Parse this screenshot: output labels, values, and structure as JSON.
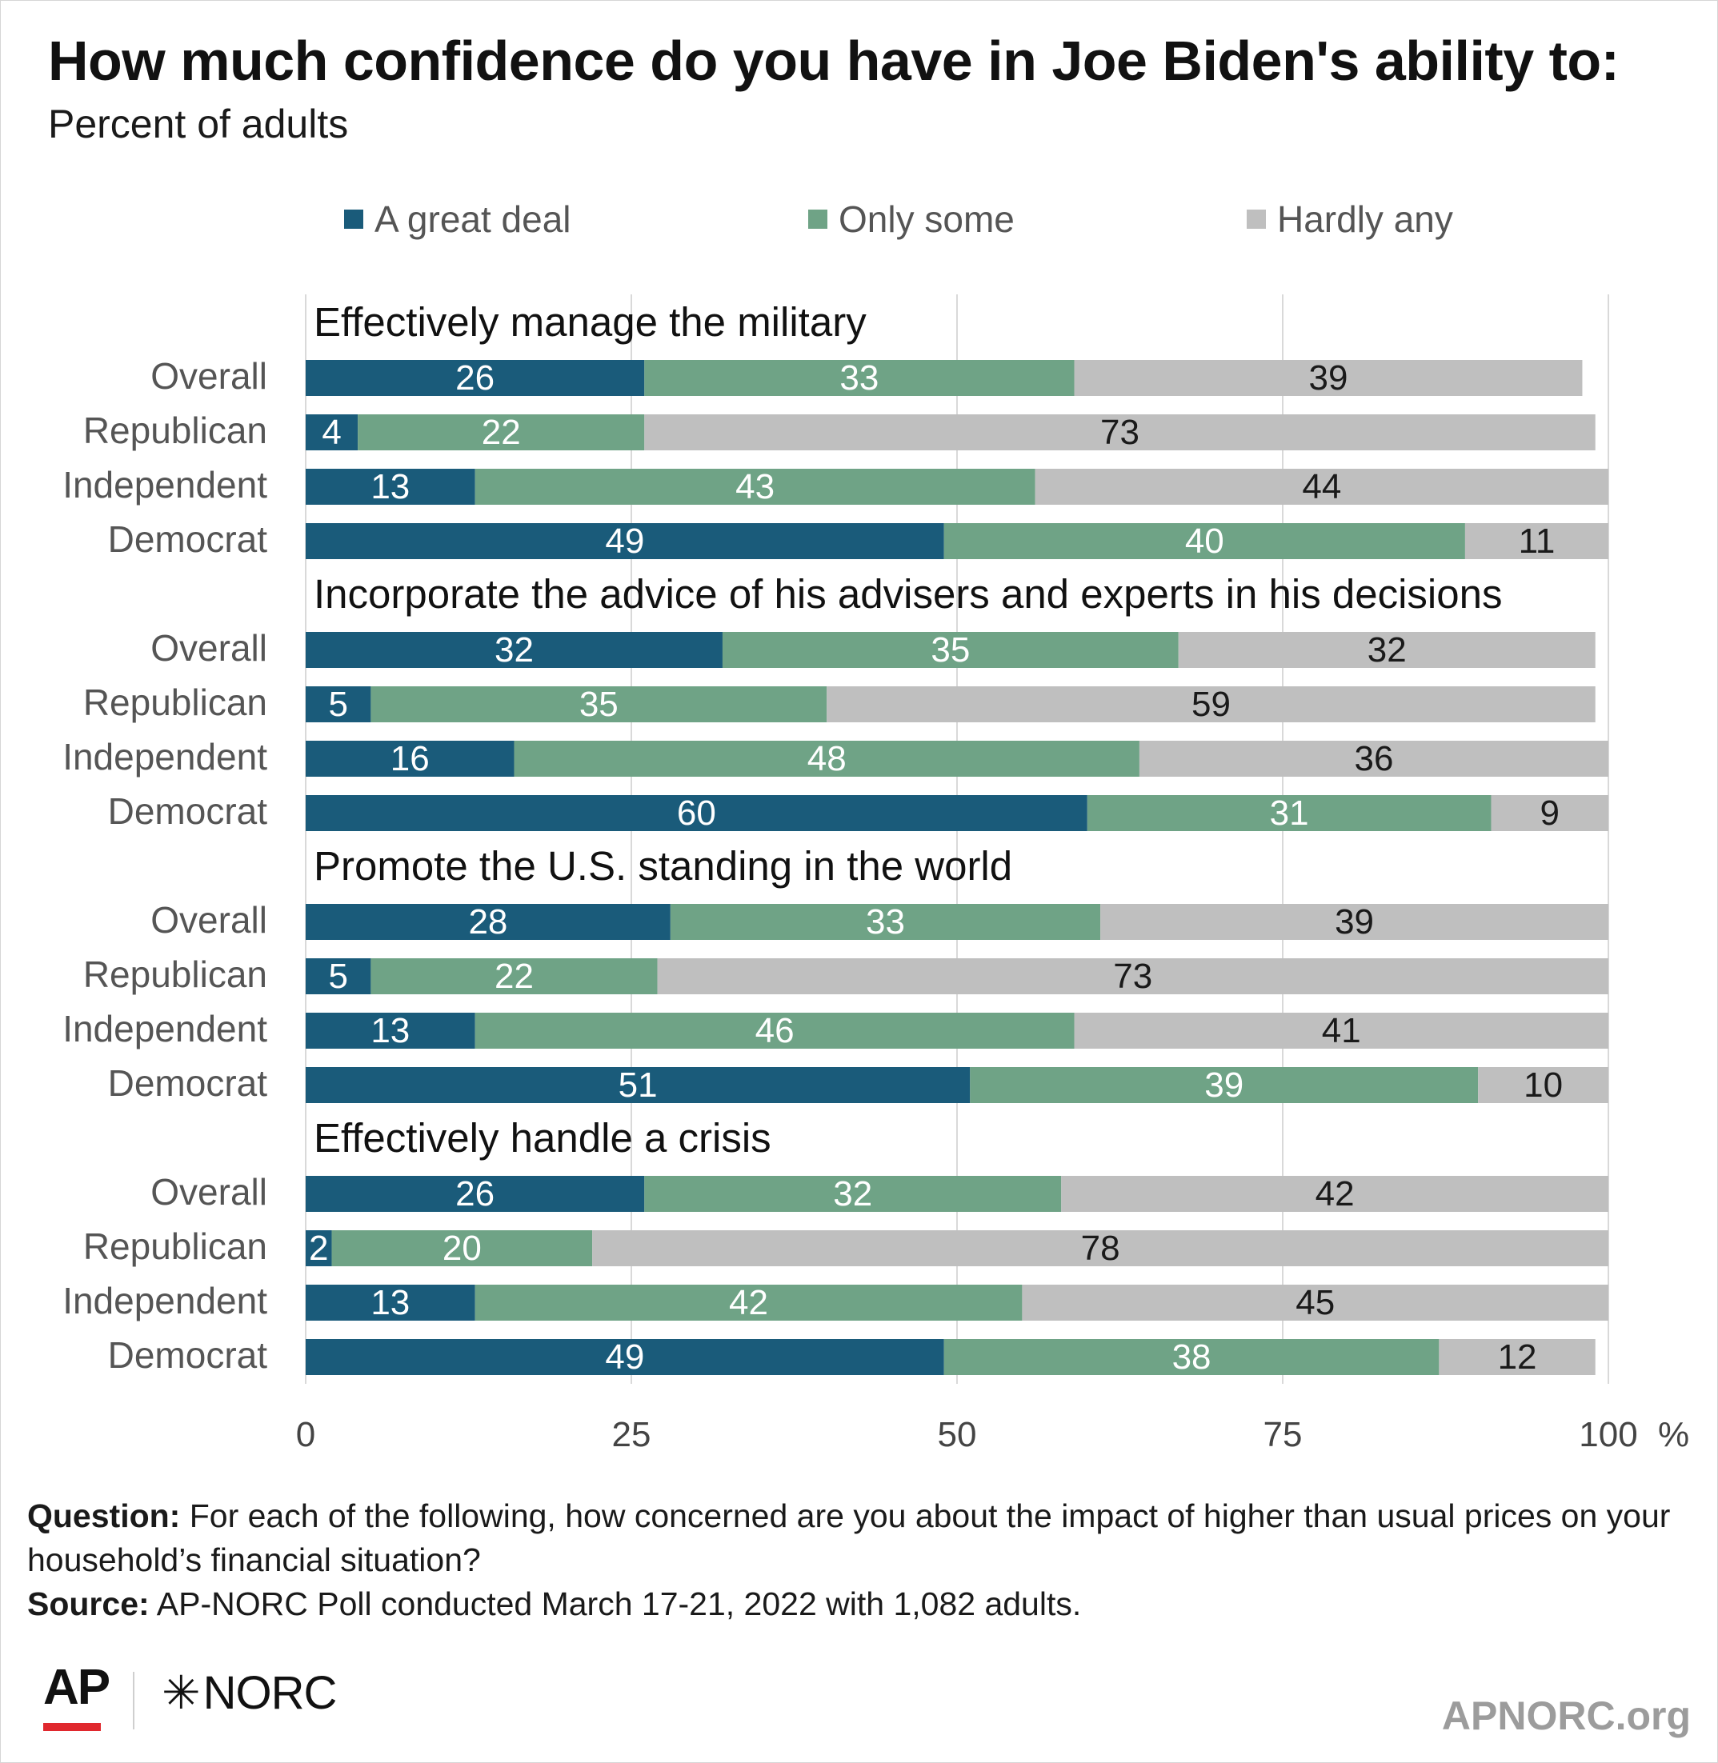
{
  "header": {
    "title": "How much confidence do you have in Joe Biden's ability to:",
    "subtitle": "Percent of adults"
  },
  "chart_data": {
    "type": "bar",
    "orientation": "horizontal",
    "stacked": true,
    "xlim": [
      0,
      100
    ],
    "x_ticks": [
      "0",
      "25",
      "50",
      "75",
      "100"
    ],
    "x_unit": "%",
    "grid": true,
    "legend_position": "top",
    "series": [
      {
        "name": "A great deal",
        "color": "#1a5b7a",
        "label_color": "#ffffff"
      },
      {
        "name": "Only some",
        "color": "#6fa386",
        "label_color": "#ffffff"
      },
      {
        "name": "Hardly any",
        "color": "#bfbfbf",
        "label_color": "#1a1a1a"
      }
    ],
    "groups": [
      {
        "label": "Effectively manage the military",
        "rows": [
          {
            "category": "Overall",
            "values": [
              26,
              33,
              39
            ]
          },
          {
            "category": "Republican",
            "values": [
              4,
              22,
              73
            ]
          },
          {
            "category": "Independent",
            "values": [
              13,
              43,
              44
            ]
          },
          {
            "category": "Democrat",
            "values": [
              49,
              40,
              11
            ]
          }
        ]
      },
      {
        "label": "Incorporate the advice of his advisers and experts in his decisions",
        "rows": [
          {
            "category": "Overall",
            "values": [
              32,
              35,
              32
            ]
          },
          {
            "category": "Republican",
            "values": [
              5,
              35,
              59
            ]
          },
          {
            "category": "Independent",
            "values": [
              16,
              48,
              36
            ]
          },
          {
            "category": "Democrat",
            "values": [
              60,
              31,
              9
            ]
          }
        ]
      },
      {
        "label": "Promote the U.S. standing in the world",
        "rows": [
          {
            "category": "Overall",
            "values": [
              28,
              33,
              39
            ]
          },
          {
            "category": "Republican",
            "values": [
              5,
              22,
              73
            ]
          },
          {
            "category": "Independent",
            "values": [
              13,
              46,
              41
            ]
          },
          {
            "category": "Democrat",
            "values": [
              51,
              39,
              10
            ]
          }
        ]
      },
      {
        "label": "Effectively handle a crisis",
        "rows": [
          {
            "category": "Overall",
            "values": [
              26,
              32,
              42
            ]
          },
          {
            "category": "Republican",
            "values": [
              2,
              20,
              78
            ]
          },
          {
            "category": "Independent",
            "values": [
              13,
              42,
              45
            ]
          },
          {
            "category": "Democrat",
            "values": [
              49,
              38,
              12
            ]
          }
        ]
      }
    ]
  },
  "notes": {
    "question_label": "Question:",
    "question_text": "For each of the following, how concerned are you about the impact of higher than usual prices on your household’s financial situation?",
    "source_label": "Source:",
    "source_text": "AP-NORC Poll conducted March 17-21, 2022 with 1,082 adults."
  },
  "footer": {
    "logo_ap": "AP",
    "logo_norc": "NORC",
    "logo_norc_star": "✳",
    "site": "APNORC.org"
  }
}
